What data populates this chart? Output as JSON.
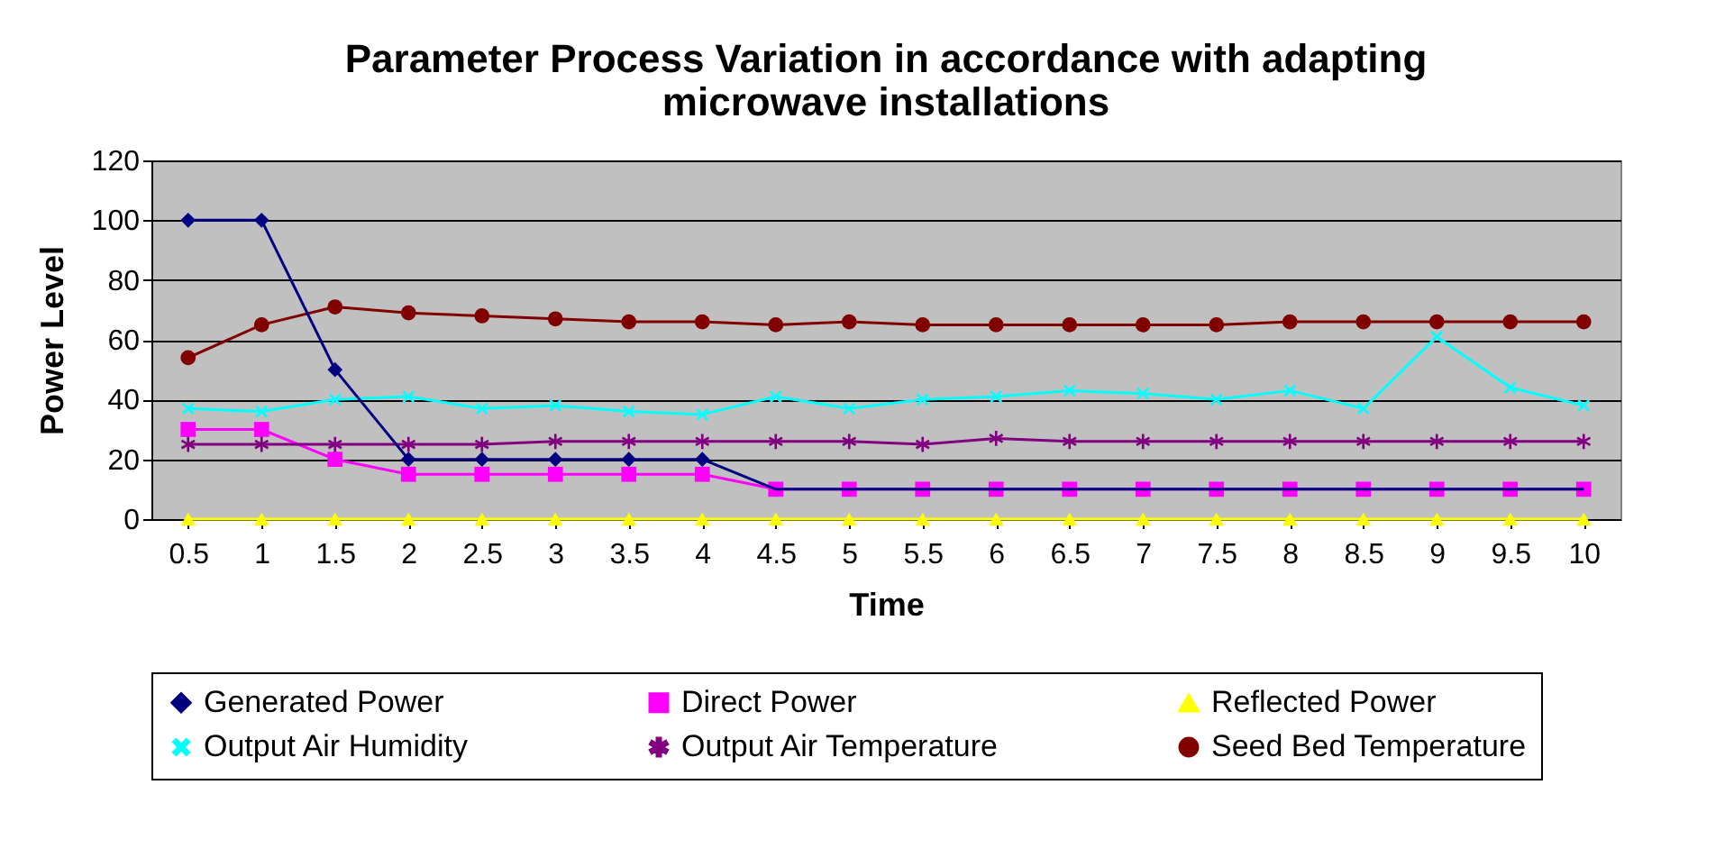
{
  "chart_data": {
    "type": "line",
    "title": "Parameter Process Variation in accordance with adapting microwave installations",
    "xlabel": "Time",
    "ylabel": "Power Level",
    "categories": [
      "0.5",
      "1",
      "1.5",
      "2",
      "2.5",
      "3",
      "3.5",
      "4",
      "4.5",
      "5",
      "5.5",
      "6",
      "6.5",
      "7",
      "7.5",
      "8",
      "8.5",
      "9",
      "9.5",
      "10"
    ],
    "series": [
      {
        "name": "Generated Power",
        "color": "#000080",
        "marker": "diamond",
        "values": [
          100,
          100,
          50,
          20,
          20,
          20,
          20,
          20,
          10,
          10,
          10,
          10,
          10,
          10,
          10,
          10,
          10,
          10,
          10,
          10
        ]
      },
      {
        "name": "Direct Power",
        "color": "#ff00ff",
        "marker": "square",
        "values": [
          30,
          30,
          20,
          15,
          15,
          15,
          15,
          15,
          10,
          10,
          10,
          10,
          10,
          10,
          10,
          10,
          10,
          10,
          10,
          10
        ]
      },
      {
        "name": "Reflected Power",
        "color": "#ffff00",
        "marker": "triangle",
        "values": [
          0,
          0,
          0,
          0,
          0,
          0,
          0,
          0,
          0,
          0,
          0,
          0,
          0,
          0,
          0,
          0,
          0,
          0,
          0,
          0
        ]
      },
      {
        "name": "Output Air Humidity",
        "color": "#00ffff",
        "marker": "cross",
        "values": [
          37,
          36,
          40,
          41,
          37,
          38,
          36,
          35,
          41,
          37,
          40,
          41,
          43,
          42,
          40,
          43,
          37,
          61,
          44,
          38
        ]
      },
      {
        "name": "Output Air Temperature",
        "color": "#800080",
        "marker": "star",
        "values": [
          25,
          25,
          25,
          25,
          25,
          26,
          26,
          26,
          26,
          26,
          25,
          27,
          26,
          26,
          26,
          26,
          26,
          26,
          26,
          26
        ]
      },
      {
        "name": "Seed Bed Temperature",
        "color": "#800000",
        "marker": "circle",
        "values": [
          54,
          65,
          71,
          69,
          68,
          67,
          66,
          66,
          65,
          66,
          65,
          65,
          65,
          65,
          65,
          66,
          66,
          66,
          66,
          66
        ]
      }
    ],
    "ylim": [
      0,
      120
    ],
    "yticks": [
      0,
      20,
      40,
      60,
      80,
      100,
      120
    ],
    "grid": "y",
    "legend": "bottom"
  }
}
